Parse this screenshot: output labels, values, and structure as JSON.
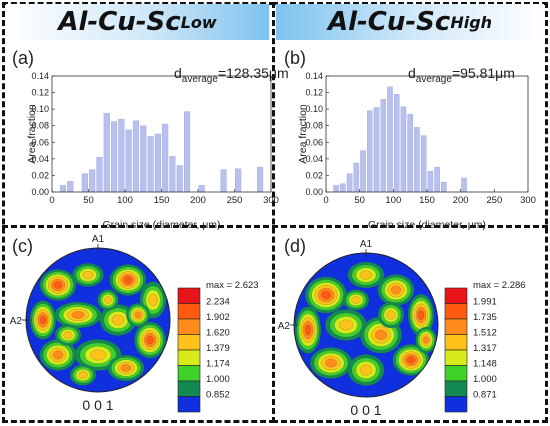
{
  "panels": [
    {
      "key": "left",
      "title_main": "Al-Cu-Sc",
      "title_sub": "Low",
      "hist_letter": "(a)",
      "pf_letter": "(c)"
    },
    {
      "key": "right",
      "title_main": "Al-Cu-Sc",
      "title_sub": "High",
      "hist_letter": "(b)",
      "pf_letter": "(d)"
    }
  ],
  "colors": {
    "bar": "#b8c0ee",
    "bar_stroke": "#9aa4e0",
    "header_left": "#7ec3ef",
    "header_right": "#7ec3ef"
  },
  "chart_data": [
    {
      "type": "bar",
      "title": "",
      "xlabel": "Grain size (diameter, μm)",
      "ylabel": "Area fraction",
      "annotation": {
        "prefix": "d",
        "subscript": "average",
        "suffix": "=128.35μm"
      },
      "xlim": [
        0,
        300
      ],
      "ylim": [
        0,
        0.14
      ],
      "xticks": [
        0,
        50,
        100,
        150,
        200,
        250,
        300
      ],
      "yticks": [
        0.0,
        0.02,
        0.04,
        0.06,
        0.08,
        0.1,
        0.12,
        0.14
      ],
      "bin_width": 10,
      "x": [
        15,
        25,
        45,
        55,
        65,
        75,
        85,
        95,
        105,
        115,
        125,
        135,
        145,
        155,
        165,
        175,
        185,
        205,
        235,
        255,
        285
      ],
      "values": [
        0.008,
        0.013,
        0.022,
        0.027,
        0.042,
        0.095,
        0.085,
        0.088,
        0.075,
        0.086,
        0.08,
        0.067,
        0.07,
        0.082,
        0.043,
        0.032,
        0.097,
        0.008,
        0.027,
        0.028,
        0.03
      ]
    },
    {
      "type": "bar",
      "title": "",
      "xlabel": "Grain size (diameter, μm)",
      "ylabel": "Area fraction",
      "annotation": {
        "prefix": "d",
        "subscript": "average",
        "suffix": "=95.81μm"
      },
      "xlim": [
        0,
        300
      ],
      "ylim": [
        0,
        0.14
      ],
      "xticks": [
        0,
        50,
        100,
        150,
        200,
        250,
        300
      ],
      "yticks": [
        0.0,
        0.02,
        0.04,
        0.06,
        0.08,
        0.1,
        0.12,
        0.14
      ],
      "bin_width": 10,
      "x": [
        15,
        25,
        35,
        45,
        55,
        65,
        75,
        85,
        95,
        105,
        115,
        125,
        135,
        145,
        155,
        165,
        175,
        205
      ],
      "values": [
        0.008,
        0.01,
        0.022,
        0.035,
        0.05,
        0.098,
        0.102,
        0.112,
        0.127,
        0.118,
        0.103,
        0.094,
        0.078,
        0.068,
        0.025,
        0.03,
        0.012,
        0.017
      ]
    }
  ],
  "pole_figures": [
    {
      "top_label": "A1",
      "side_label": "A2",
      "bottom_label": "0 0 1",
      "legend": [
        "max = 2.623",
        "2.234",
        "1.902",
        "1.620",
        "1.379",
        "1.174",
        "1.000",
        "0.852"
      ]
    },
    {
      "top_label": "A1",
      "side_label": "A2",
      "bottom_label": "0 0 1",
      "legend": [
        "max = 2.286",
        "1.991",
        "1.735",
        "1.512",
        "1.317",
        "1.148",
        "1.000",
        "0.871"
      ]
    }
  ],
  "legend_colors": [
    "#e8141a",
    "#ff5a10",
    "#ff8c1a",
    "#ffc21a",
    "#d8ea1a",
    "#3fd12a",
    "#138a52",
    "#1030e0"
  ]
}
